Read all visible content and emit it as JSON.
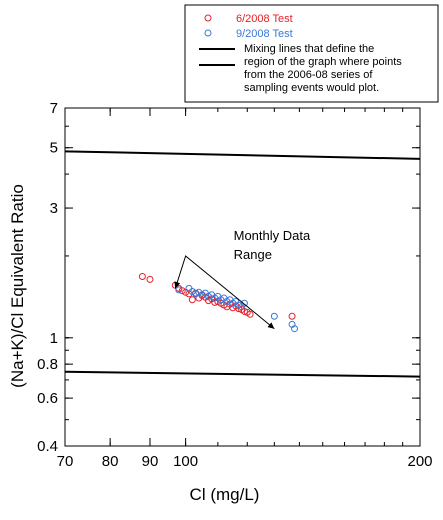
{
  "chart_data": {
    "type": "scatter",
    "xlabel": "Cl (mg/L)",
    "ylabel": "(Na+K)/Cl Equivalent Ratio",
    "x_scale": "log",
    "y_scale": "log",
    "xlim": [
      70,
      200
    ],
    "ylim": [
      0.4,
      7
    ],
    "x_ticks": [
      {
        "value": 70,
        "label": "70"
      },
      {
        "value": 80,
        "label": "80"
      },
      {
        "value": 90,
        "label": "90"
      },
      {
        "value": 100,
        "label": "100"
      },
      {
        "value": 200,
        "label": "200"
      }
    ],
    "y_ticks": [
      {
        "value": 0.4,
        "label": "0.4"
      },
      {
        "value": 0.6,
        "label": "0.6"
      },
      {
        "value": 0.8,
        "label": "0.8"
      },
      {
        "value": 1,
        "label": "1"
      },
      {
        "value": 3,
        "label": "3"
      },
      {
        "value": 5,
        "label": "5"
      },
      {
        "value": 7,
        "label": "7"
      }
    ],
    "series": [
      {
        "name": "6/2008 Test",
        "marker": "open-circle",
        "color": "#e8202a",
        "points": [
          [
            88,
            1.68
          ],
          [
            90,
            1.64
          ],
          [
            97,
            1.56
          ],
          [
            98,
            1.52
          ],
          [
            99,
            1.49
          ],
          [
            100,
            1.47
          ],
          [
            101,
            1.45
          ],
          [
            102,
            1.38
          ],
          [
            103,
            1.46
          ],
          [
            104,
            1.4
          ],
          [
            105,
            1.43
          ],
          [
            106,
            1.41
          ],
          [
            107,
            1.37
          ],
          [
            108,
            1.39
          ],
          [
            109,
            1.35
          ],
          [
            110,
            1.36
          ],
          [
            111,
            1.34
          ],
          [
            112,
            1.32
          ],
          [
            113,
            1.3
          ],
          [
            114,
            1.33
          ],
          [
            115,
            1.29
          ],
          [
            116,
            1.31
          ],
          [
            117,
            1.28
          ],
          [
            118,
            1.27
          ],
          [
            119,
            1.25
          ],
          [
            120,
            1.24
          ],
          [
            121,
            1.22
          ],
          [
            137,
            1.2
          ]
        ]
      },
      {
        "name": "9/2008 Test",
        "marker": "open-circle",
        "color": "#3a78d8",
        "points": [
          [
            98,
            1.5
          ],
          [
            101,
            1.52
          ],
          [
            102,
            1.48
          ],
          [
            103,
            1.45
          ],
          [
            104,
            1.47
          ],
          [
            105,
            1.44
          ],
          [
            106,
            1.46
          ],
          [
            107,
            1.42
          ],
          [
            108,
            1.44
          ],
          [
            109,
            1.4
          ],
          [
            110,
            1.42
          ],
          [
            111,
            1.38
          ],
          [
            112,
            1.4
          ],
          [
            113,
            1.36
          ],
          [
            114,
            1.38
          ],
          [
            115,
            1.34
          ],
          [
            116,
            1.36
          ],
          [
            117,
            1.32
          ],
          [
            118,
            1.3
          ],
          [
            119,
            1.34
          ],
          [
            130,
            1.2
          ],
          [
            137,
            1.12
          ],
          [
            138,
            1.08
          ]
        ]
      }
    ],
    "mixing_lines": {
      "name": "Mixing lines that define the region of the graph where points from the 2006-08 series of sampling events would plot.",
      "color": "#000000",
      "lines": [
        {
          "x": [
            70,
            200
          ],
          "y": [
            4.85,
            4.55
          ]
        },
        {
          "x": [
            70,
            200
          ],
          "y": [
            0.75,
            0.72
          ]
        }
      ]
    },
    "legend": {
      "position": "top-right",
      "entries": [
        {
          "label": "6/2008 Test",
          "color": "#e8202a",
          "kind": "circle"
        },
        {
          "label": "9/2008 Test",
          "color": "#3a78d8",
          "kind": "circle"
        },
        {
          "label": "Mixing lines that define the region of the graph where points from the 2006-08 series of sampling events would plot.",
          "color": "#000000",
          "kind": "line"
        }
      ],
      "mixing_text_lines": [
        "Mixing lines that define the",
        "region of the graph where points",
        "from the 2006-08 series of",
        "sampling events would plot."
      ]
    },
    "annotations": [
      {
        "text_lines": [
          "Monthly Data",
          "Range"
        ],
        "bracket": {
          "start": [
            97,
            1.52
          ],
          "apex": [
            100,
            2.0
          ],
          "end": [
            130,
            1.08
          ]
        }
      }
    ],
    "grid": false
  }
}
